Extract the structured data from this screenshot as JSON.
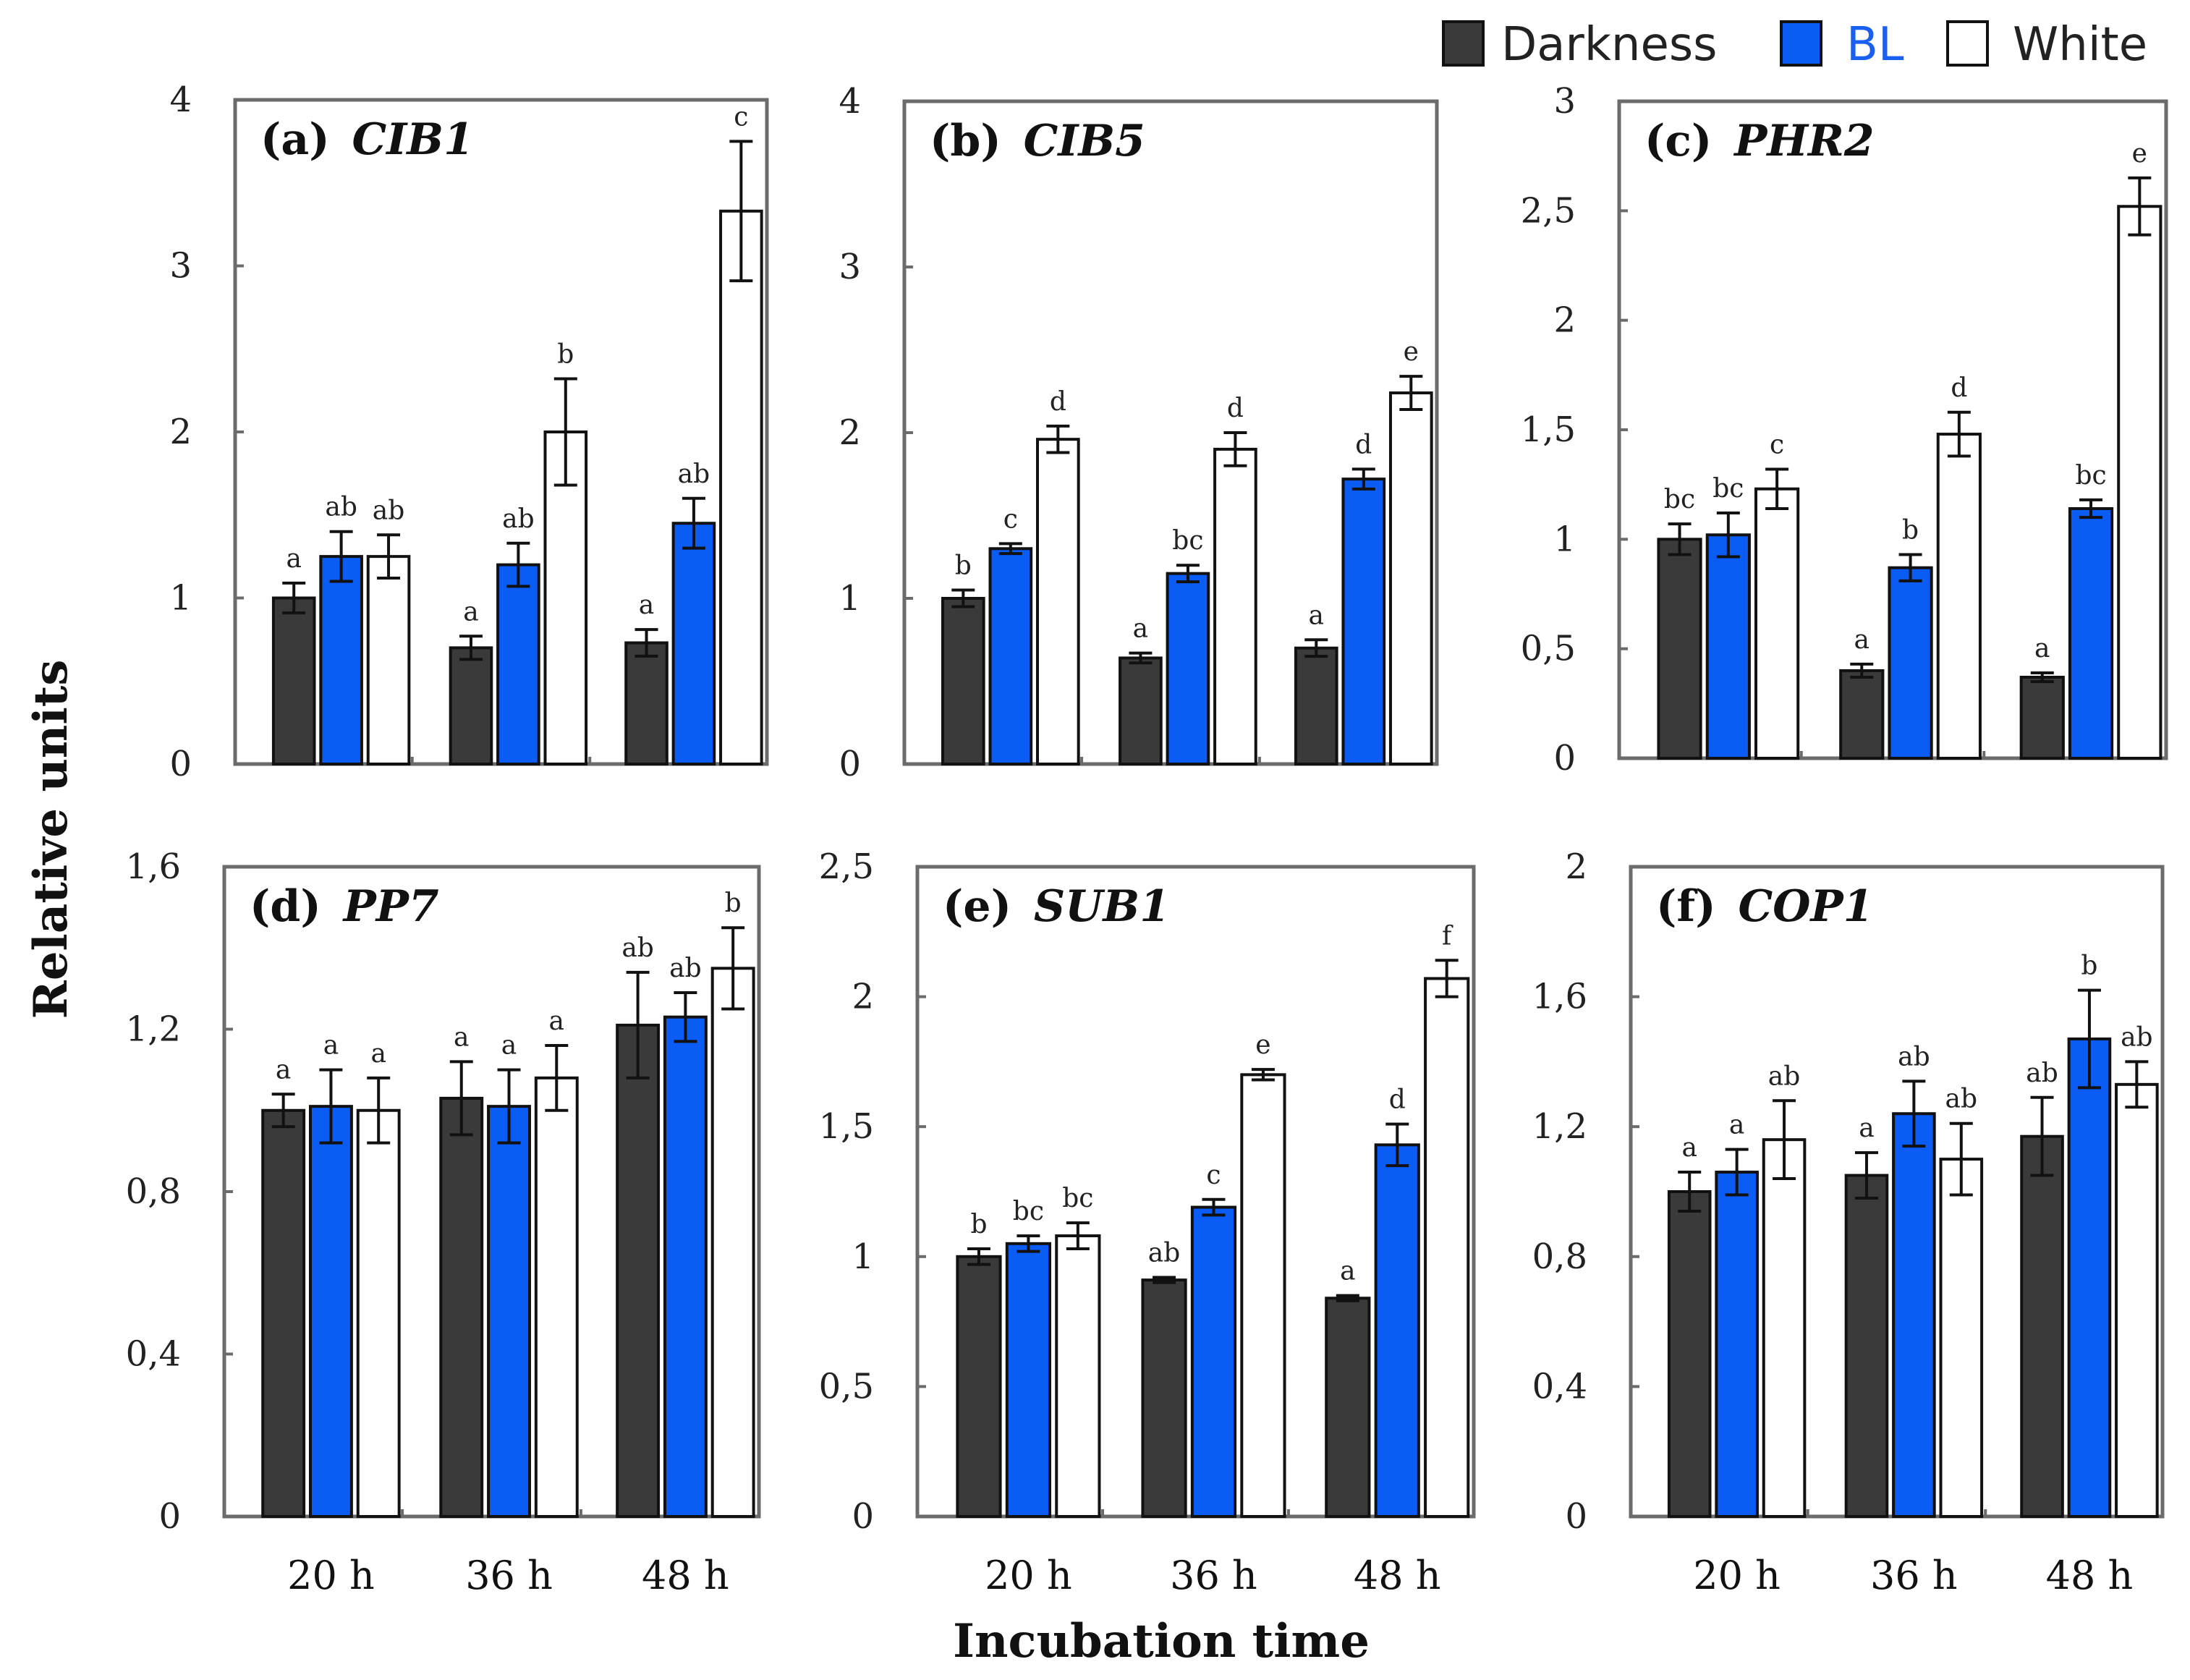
{
  "ylabel": "Relative units",
  "xlabel": "Incubation time",
  "legend": [
    {
      "name": "Darkness",
      "color": "#3a3a3a",
      "text_color": "#222222"
    },
    {
      "name": "BL",
      "color": "#0a5cf5",
      "text_color": "#1a5ff0"
    },
    {
      "name": "White",
      "color": "#ffffff",
      "text_color": "#222222"
    }
  ],
  "chart_data": [
    {
      "type": "bar",
      "label": "(a)",
      "gene": "CIB1",
      "categories": [
        "20 h",
        "36 h",
        "48 h"
      ],
      "ylim": [
        0,
        4
      ],
      "ticks": [
        0,
        1,
        2,
        3,
        4
      ],
      "tick_labels": [
        "0",
        "1",
        "2",
        "3",
        "4"
      ],
      "series": [
        {
          "name": "Darkness",
          "values": [
            1.0,
            0.7,
            0.73
          ],
          "errors": [
            0.09,
            0.07,
            0.08
          ],
          "letters": [
            "a",
            "a",
            "a"
          ]
        },
        {
          "name": "BL",
          "values": [
            1.25,
            1.2,
            1.45
          ],
          "errors": [
            0.15,
            0.13,
            0.15
          ],
          "letters": [
            "ab",
            "ab",
            "ab"
          ]
        },
        {
          "name": "White",
          "values": [
            1.25,
            2.0,
            3.33
          ],
          "errors": [
            0.13,
            0.32,
            0.42
          ],
          "letters": [
            "ab",
            "b",
            "c"
          ]
        }
      ]
    },
    {
      "type": "bar",
      "label": "(b)",
      "gene": "CIB5",
      "categories": [
        "20 h",
        "36 h",
        "48 h"
      ],
      "ylim": [
        0,
        4
      ],
      "ticks": [
        0,
        1,
        2,
        3,
        4
      ],
      "tick_labels": [
        "0",
        "1",
        "2",
        "3",
        "4"
      ],
      "series": [
        {
          "name": "Darkness",
          "values": [
            1.0,
            0.64,
            0.7
          ],
          "errors": [
            0.05,
            0.03,
            0.05
          ],
          "letters": [
            "b",
            "a",
            "a"
          ]
        },
        {
          "name": "BL",
          "values": [
            1.3,
            1.15,
            1.72
          ],
          "errors": [
            0.03,
            0.05,
            0.06
          ],
          "letters": [
            "c",
            "bc",
            "d"
          ]
        },
        {
          "name": "White",
          "values": [
            1.96,
            1.9,
            2.24
          ],
          "errors": [
            0.08,
            0.1,
            0.1
          ],
          "letters": [
            "d",
            "d",
            "e"
          ]
        }
      ]
    },
    {
      "type": "bar",
      "label": "(c)",
      "gene": "PHR2",
      "categories": [
        "20 h",
        "36 h",
        "48 h"
      ],
      "ylim": [
        0,
        3
      ],
      "ticks": [
        0,
        0.5,
        1,
        1.5,
        2,
        2.5,
        3
      ],
      "tick_labels": [
        "0",
        "0,5",
        "1",
        "1,5",
        "2",
        "2,5",
        "3"
      ],
      "series": [
        {
          "name": "Darkness",
          "values": [
            1.0,
            0.4,
            0.37
          ],
          "errors": [
            0.07,
            0.03,
            0.02
          ],
          "letters": [
            "bc",
            "a",
            "a"
          ]
        },
        {
          "name": "BL",
          "values": [
            1.02,
            0.87,
            1.14
          ],
          "errors": [
            0.1,
            0.06,
            0.04
          ],
          "letters": [
            "bc",
            "b",
            "bc"
          ]
        },
        {
          "name": "White",
          "values": [
            1.23,
            1.48,
            2.52
          ],
          "errors": [
            0.09,
            0.1,
            0.13
          ],
          "letters": [
            "c",
            "d",
            "e"
          ]
        }
      ]
    },
    {
      "type": "bar",
      "label": "(d)",
      "gene": "PP7",
      "categories": [
        "20 h",
        "36 h",
        "48 h"
      ],
      "ylim": [
        0,
        1.6
      ],
      "ticks": [
        0,
        0.4,
        0.8,
        1.2,
        1.6
      ],
      "tick_labels": [
        "0",
        "0,4",
        "0,8",
        "1,2",
        "1,6"
      ],
      "series": [
        {
          "name": "Darkness",
          "values": [
            1.0,
            1.03,
            1.21
          ],
          "errors": [
            0.04,
            0.09,
            0.13
          ],
          "letters": [
            "a",
            "a",
            "ab"
          ]
        },
        {
          "name": "BL",
          "values": [
            1.01,
            1.01,
            1.23
          ],
          "errors": [
            0.09,
            0.09,
            0.06
          ],
          "letters": [
            "a",
            "a",
            "ab"
          ]
        },
        {
          "name": "White",
          "values": [
            1.0,
            1.08,
            1.35
          ],
          "errors": [
            0.08,
            0.08,
            0.1
          ],
          "letters": [
            "a",
            "a",
            "b"
          ]
        }
      ]
    },
    {
      "type": "bar",
      "label": "(e)",
      "gene": "SUB1",
      "categories": [
        "20 h",
        "36 h",
        "48 h"
      ],
      "ylim": [
        0,
        2.5
      ],
      "ticks": [
        0,
        0.5,
        1,
        1.5,
        2,
        2.5
      ],
      "tick_labels": [
        "0",
        "0,5",
        "1",
        "1,5",
        "2",
        "2,5"
      ],
      "series": [
        {
          "name": "Darkness",
          "values": [
            1.0,
            0.91,
            0.84
          ],
          "errors": [
            0.03,
            0.01,
            0.01
          ],
          "letters": [
            "b",
            "ab",
            "a"
          ]
        },
        {
          "name": "BL",
          "values": [
            1.05,
            1.19,
            1.43
          ],
          "errors": [
            0.03,
            0.03,
            0.08
          ],
          "letters": [
            "bc",
            "c",
            "d"
          ]
        },
        {
          "name": "White",
          "values": [
            1.08,
            1.7,
            2.07
          ],
          "errors": [
            0.05,
            0.02,
            0.07
          ],
          "letters": [
            "bc",
            "e",
            "f"
          ]
        }
      ]
    },
    {
      "type": "bar",
      "label": "(f)",
      "gene": "COP1",
      "categories": [
        "20 h",
        "36 h",
        "48 h"
      ],
      "ylim": [
        0,
        2
      ],
      "ticks": [
        0,
        0.4,
        0.8,
        1.2,
        1.6,
        2
      ],
      "tick_labels": [
        "0",
        "0,4",
        "0,8",
        "1,2",
        "1,6",
        "2"
      ],
      "series": [
        {
          "name": "Darkness",
          "values": [
            1.0,
            1.05,
            1.17
          ],
          "errors": [
            0.06,
            0.07,
            0.12
          ],
          "letters": [
            "a",
            "a",
            "ab"
          ]
        },
        {
          "name": "BL",
          "values": [
            1.06,
            1.24,
            1.47
          ],
          "errors": [
            0.07,
            0.1,
            0.15
          ],
          "letters": [
            "a",
            "ab",
            "b"
          ]
        },
        {
          "name": "White",
          "values": [
            1.16,
            1.1,
            1.33
          ],
          "errors": [
            0.12,
            0.11,
            0.07
          ],
          "letters": [
            "ab",
            "ab",
            "ab"
          ]
        }
      ]
    }
  ]
}
